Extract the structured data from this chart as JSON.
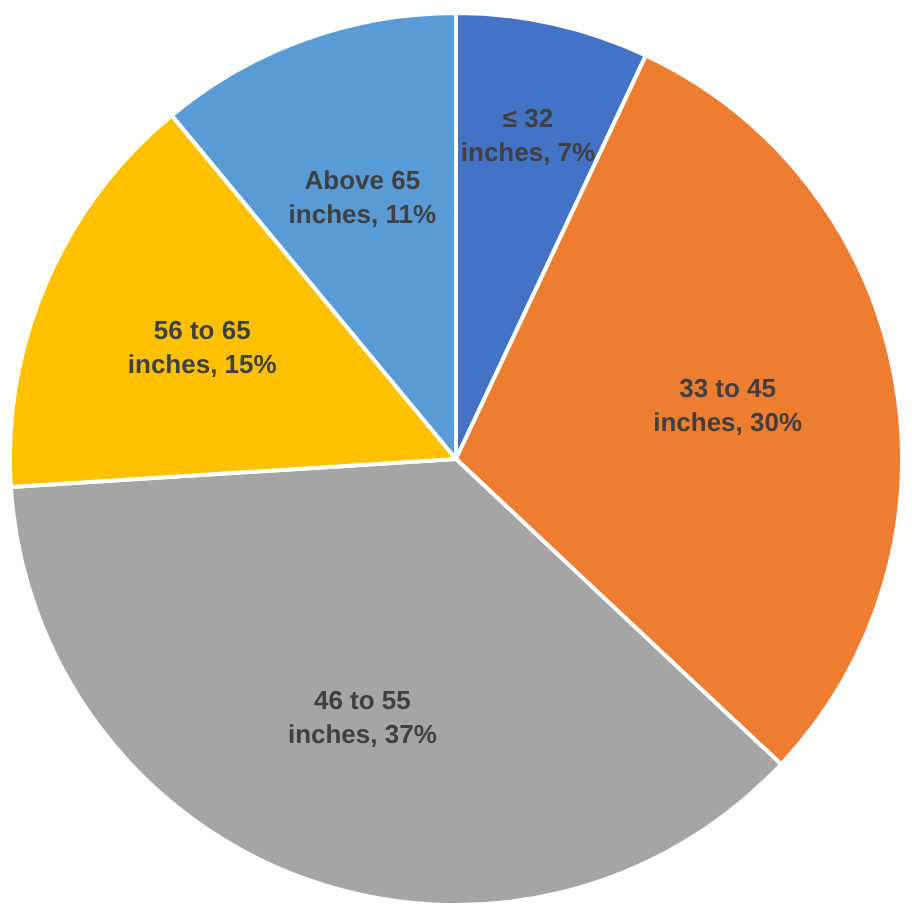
{
  "chart_data": {
    "type": "pie",
    "categories": [
      "≤ 32 inches",
      "33 to 45 inches",
      "46 to 55 inches",
      "56 to 65 inches",
      "Above 65 inches"
    ],
    "values": [
      7,
      30,
      37,
      15,
      11
    ],
    "value_labels": [
      "7%",
      "30%",
      "37%",
      "15%",
      "11%"
    ],
    "colors": [
      "#4472c4",
      "#ed7d31",
      "#a5a5a5",
      "#ffc000",
      "#5b9bd5"
    ],
    "legend": false
  }
}
